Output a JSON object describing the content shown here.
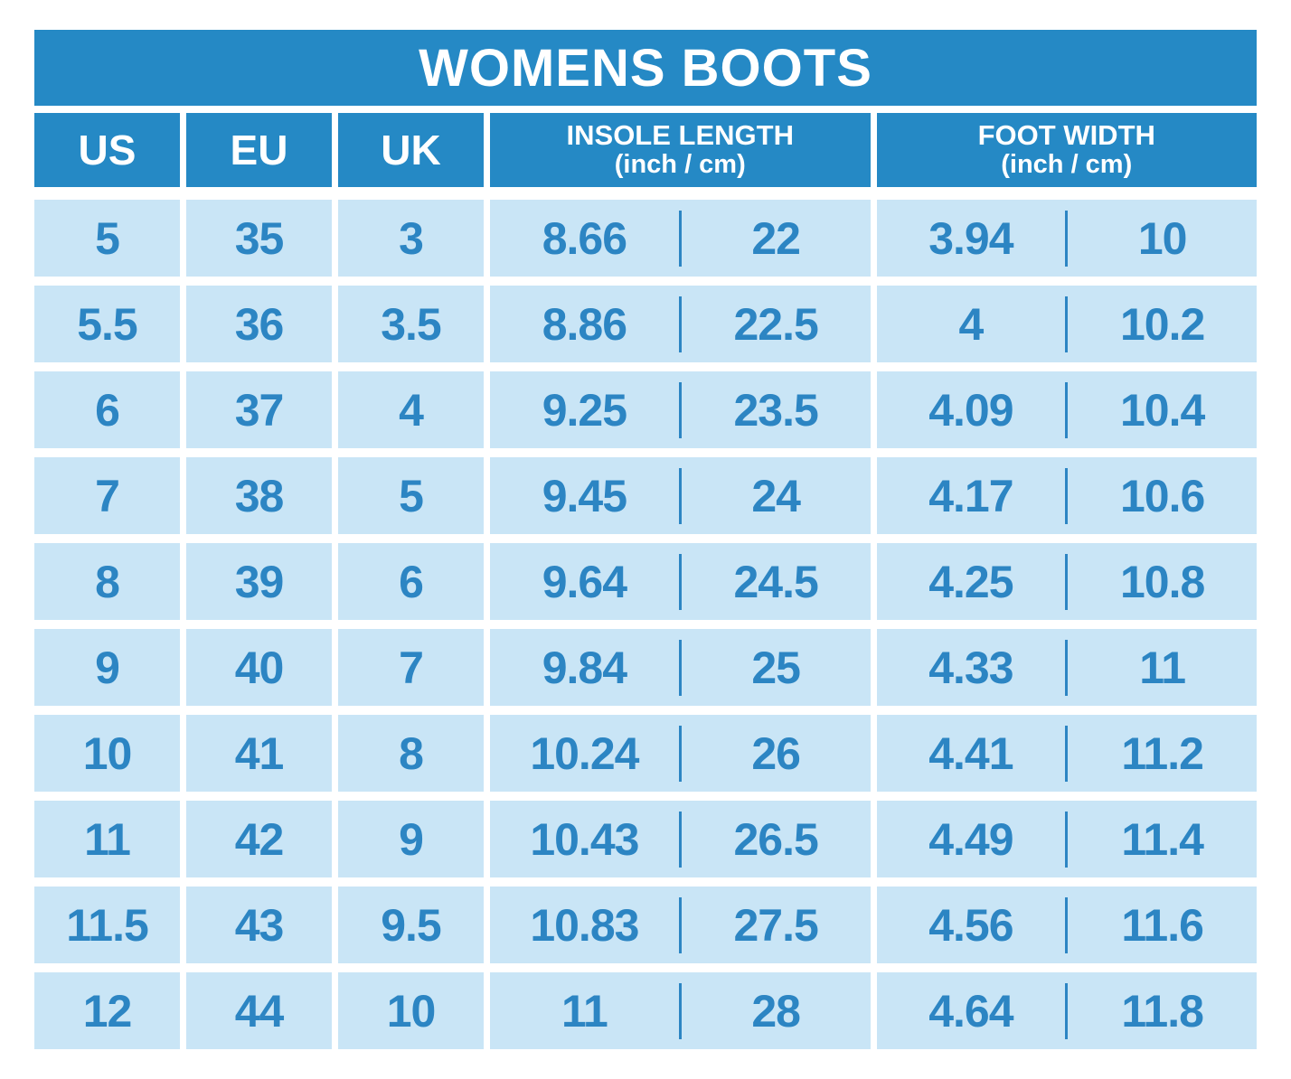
{
  "title": "WOMENS BOOTS",
  "colors": {
    "header_bg": "#2589C5",
    "cell_bg": "#C9E5F6",
    "cell_text": "#2C85C3",
    "page_bg": "#FFFFFF",
    "header_text": "#FFFFFF"
  },
  "chart_data": {
    "type": "table",
    "title": "WOMENS BOOTS",
    "header": {
      "us": "US",
      "eu": "EU",
      "uk": "UK",
      "insole": {
        "label": "INSOLE LENGTH",
        "sub": "(inch / cm)"
      },
      "foot": {
        "label": "FOOT WIDTH",
        "sub": "(inch / cm)"
      }
    },
    "columns": [
      "US",
      "EU",
      "UK",
      "INSOLE LENGTH (inch / cm)",
      "FOOT WIDTH (inch / cm)"
    ],
    "rows": [
      {
        "us": "5",
        "eu": "35",
        "uk": "3",
        "insole_inch": "8.66",
        "insole_cm": "22",
        "foot_inch": "3.94",
        "foot_cm": "10"
      },
      {
        "us": "5.5",
        "eu": "36",
        "uk": "3.5",
        "insole_inch": "8.86",
        "insole_cm": "22.5",
        "foot_inch": "4",
        "foot_cm": "10.2"
      },
      {
        "us": "6",
        "eu": "37",
        "uk": "4",
        "insole_inch": "9.25",
        "insole_cm": "23.5",
        "foot_inch": "4.09",
        "foot_cm": "10.4"
      },
      {
        "us": "7",
        "eu": "38",
        "uk": "5",
        "insole_inch": "9.45",
        "insole_cm": "24",
        "foot_inch": "4.17",
        "foot_cm": "10.6"
      },
      {
        "us": "8",
        "eu": "39",
        "uk": "6",
        "insole_inch": "9.64",
        "insole_cm": "24.5",
        "foot_inch": "4.25",
        "foot_cm": "10.8"
      },
      {
        "us": "9",
        "eu": "40",
        "uk": "7",
        "insole_inch": "9.84",
        "insole_cm": "25",
        "foot_inch": "4.33",
        "foot_cm": "11"
      },
      {
        "us": "10",
        "eu": "41",
        "uk": "8",
        "insole_inch": "10.24",
        "insole_cm": "26",
        "foot_inch": "4.41",
        "foot_cm": "11.2"
      },
      {
        "us": "11",
        "eu": "42",
        "uk": "9",
        "insole_inch": "10.43",
        "insole_cm": "26.5",
        "foot_inch": "4.49",
        "foot_cm": "11.4"
      },
      {
        "us": "11.5",
        "eu": "43",
        "uk": "9.5",
        "insole_inch": "10.83",
        "insole_cm": "27.5",
        "foot_inch": "4.56",
        "foot_cm": "11.6"
      },
      {
        "us": "12",
        "eu": "44",
        "uk": "10",
        "insole_inch": "11",
        "insole_cm": "28",
        "foot_inch": "4.64",
        "foot_cm": "11.8"
      }
    ]
  }
}
